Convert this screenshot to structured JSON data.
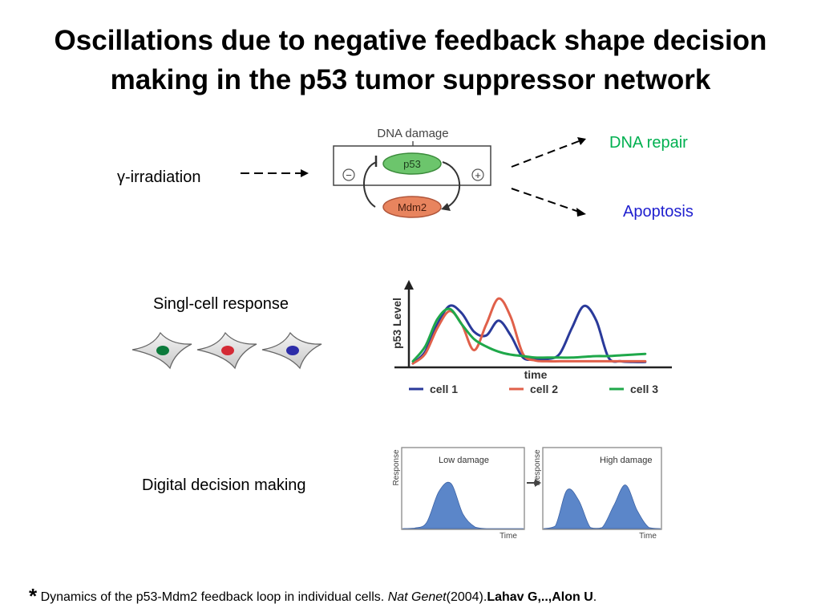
{
  "title": {
    "line1": "Oscillations due to negative feedback shape decision",
    "line2": "making in the p53 tumor suppressor network"
  },
  "pathway": {
    "input_label": "γ-irradiation",
    "box_title": "DNA damage",
    "node_top": "p53",
    "node_bottom": "Mdm2",
    "sign_left": "−",
    "sign_right": "+",
    "outcome_repair": "DNA repair",
    "outcome_apoptosis": "Apoptosis",
    "colors": {
      "repair": "#00b050",
      "apoptosis": "#1f1fcf",
      "p53_node": "#6cc56c",
      "mdm2_node": "#e8845e"
    }
  },
  "single_cell": {
    "label": "Singl-cell response",
    "cells": [
      {
        "name": "cell-green",
        "nucleus_color": "#0b7a3b"
      },
      {
        "name": "cell-red",
        "nucleus_color": "#d42a35"
      },
      {
        "name": "cell-blue",
        "nucleus_color": "#2c2ca8"
      }
    ]
  },
  "decision": {
    "label": "Digital decision making",
    "panel_low_title": "Low damage",
    "panel_high_title": "High damage",
    "ylabel": "Response",
    "xlabel": "Time",
    "fill_color": "#5b86c9"
  },
  "chart_data": [
    {
      "type": "line",
      "title": "",
      "xlabel": "time",
      "ylabel": "p53 Level",
      "xlim": [
        0,
        10
      ],
      "ylim": [
        0,
        1
      ],
      "grid": false,
      "legend": "bottom",
      "x": [
        0,
        0.5,
        1.0,
        1.5,
        2.0,
        2.5,
        3.0,
        3.5,
        4.0,
        4.5,
        5.0,
        5.5,
        6.0,
        6.5,
        7.0,
        7.5,
        8.0,
        8.5,
        9.0,
        9.5
      ],
      "series": [
        {
          "name": "cell 1",
          "color": "#2a3a9a",
          "values": [
            0.02,
            0.18,
            0.55,
            0.8,
            0.7,
            0.45,
            0.4,
            0.6,
            0.4,
            0.1,
            0.08,
            0.08,
            0.15,
            0.5,
            0.8,
            0.6,
            0.1,
            0.05,
            0.04,
            0.04
          ]
        },
        {
          "name": "cell 2",
          "color": "#e0604a",
          "values": [
            0.02,
            0.15,
            0.5,
            0.73,
            0.55,
            0.2,
            0.55,
            0.9,
            0.65,
            0.15,
            0.06,
            0.05,
            0.05,
            0.05,
            0.05,
            0.05,
            0.05,
            0.05,
            0.05,
            0.05
          ]
        },
        {
          "name": "cell 3",
          "color": "#1fa84a",
          "values": [
            0.05,
            0.25,
            0.62,
            0.76,
            0.55,
            0.35,
            0.25,
            0.18,
            0.14,
            0.12,
            0.1,
            0.1,
            0.1,
            0.1,
            0.11,
            0.12,
            0.12,
            0.13,
            0.14,
            0.15
          ]
        }
      ]
    },
    {
      "type": "area",
      "title": "Low damage",
      "xlabel": "Time",
      "ylabel": "Response",
      "x": [
        0,
        1,
        2,
        3,
        4,
        5,
        6,
        7,
        8,
        9,
        10
      ],
      "series": [
        {
          "name": "response",
          "values": [
            0,
            0.01,
            0.12,
            0.72,
            0.88,
            0.28,
            0.03,
            0,
            0,
            0,
            0
          ]
        }
      ]
    },
    {
      "type": "area",
      "title": "High damage",
      "xlabel": "Time",
      "ylabel": "Response",
      "x": [
        0,
        1,
        2,
        3,
        4,
        5,
        6,
        7,
        8,
        9,
        10
      ],
      "series": [
        {
          "name": "response",
          "values": [
            0,
            0.05,
            0.75,
            0.55,
            0.02,
            0.02,
            0.45,
            0.85,
            0.35,
            0.02,
            0
          ]
        }
      ]
    }
  ],
  "footer": {
    "star": "*",
    "text": " Dynamics of the p53-Mdm2 feedback loop in individual cells. ",
    "journal": "Nat Genet",
    "year": "(2004).",
    "authors": "Lahav G,..,Alon U",
    "end": "."
  }
}
